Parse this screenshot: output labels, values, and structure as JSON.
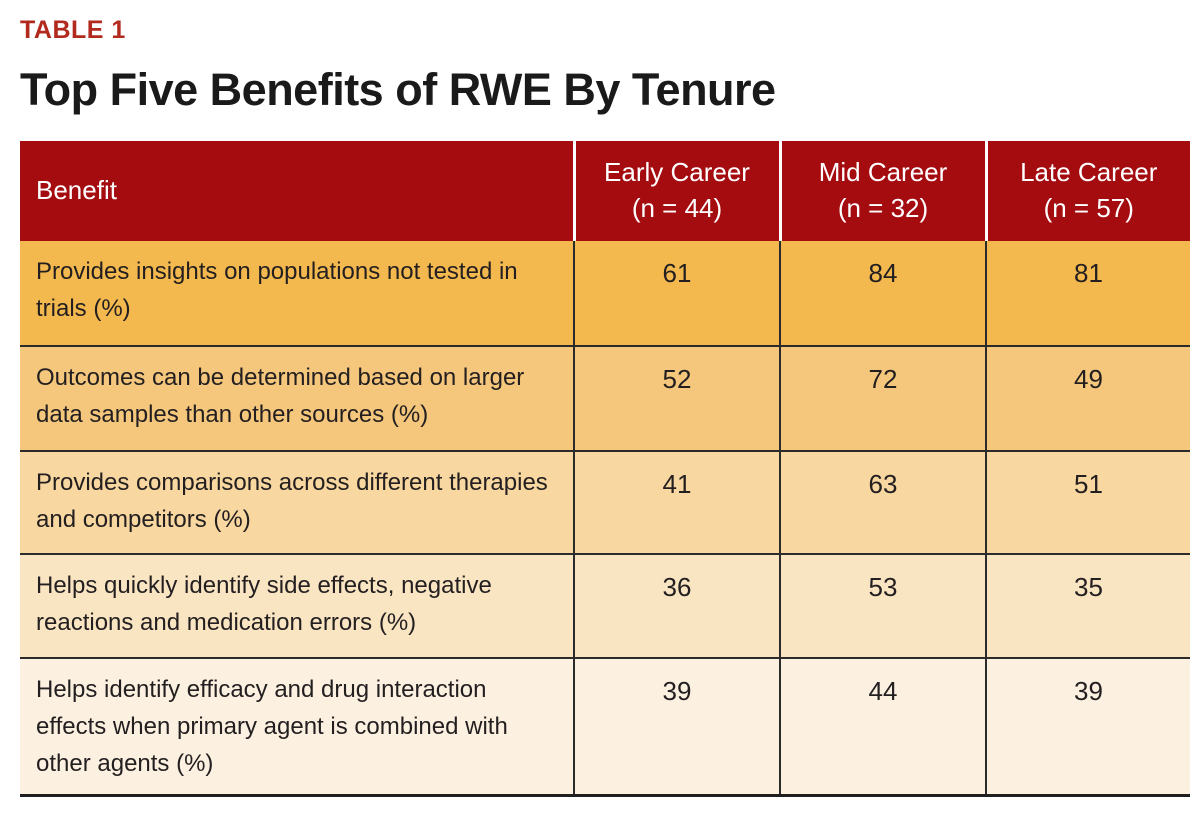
{
  "page": {
    "table_label": "TABLE 1",
    "title": "Top Five Benefits of RWE By Tenure"
  },
  "colors": {
    "label_red": "#b22a1e",
    "header_bg": "#a40c10",
    "header_text": "#ffffff",
    "body_text": "#231f20",
    "row_colors": [
      "#f3b94e",
      "#f5c77c",
      "#f8d7a0",
      "#fae5c3",
      "#fcf1e0"
    ],
    "cell_divider": "#2b2b2b",
    "bottom_border": "#1f1f1f"
  },
  "table": {
    "columns": [
      {
        "label": "Benefit",
        "n": ""
      },
      {
        "label": "Early Career",
        "n": "(n = 44)"
      },
      {
        "label": "Mid Career",
        "n": "(n = 32)"
      },
      {
        "label": "Late Career",
        "n": "(n = 57)"
      }
    ],
    "rows": [
      {
        "benefit": "Provides insights on populations not tested in trials (%)",
        "early": "61",
        "mid": "84",
        "late": "81"
      },
      {
        "benefit": "Outcomes can be determined based on larger data samples than other sources (%)",
        "early": "52",
        "mid": "72",
        "late": "49"
      },
      {
        "benefit": "Provides comparisons across different therapies and competitors (%)",
        "early": "41",
        "mid": "63",
        "late": "51"
      },
      {
        "benefit": "Helps quickly identify side effects, negative reactions and medication errors (%)",
        "early": "36",
        "mid": "53",
        "late": "35"
      },
      {
        "benefit": "Helps identify efficacy and drug interaction effects when primary agent is combined with other agents (%)",
        "early": "39",
        "mid": "44",
        "late": "39"
      }
    ]
  },
  "chart_data": {
    "type": "table",
    "title": "Top Five Benefits of RWE By Tenure",
    "table_label": "TABLE 1",
    "columns": [
      "Benefit",
      "Early Career (n = 44)",
      "Mid Career (n = 32)",
      "Late Career (n = 57)"
    ],
    "rows": [
      {
        "benefit": "Provides insights on populations not tested in trials (%)",
        "early_career": 61,
        "mid_career": 84,
        "late_career": 81
      },
      {
        "benefit": "Outcomes can be determined based on larger data samples than other sources (%)",
        "early_career": 52,
        "mid_career": 72,
        "late_career": 49
      },
      {
        "benefit": "Provides comparisons across different therapies and competitors (%)",
        "early_career": 41,
        "mid_career": 63,
        "late_career": 51
      },
      {
        "benefit": "Helps quickly identify side effects, negative reactions and medication errors (%)",
        "early_career": 36,
        "mid_career": 53,
        "late_career": 35
      },
      {
        "benefit": "Helps identify efficacy and drug interaction effects when primary agent is combined with other agents (%)",
        "early_career": 39,
        "mid_career": 44,
        "late_career": 39
      }
    ],
    "units": "percent of respondents",
    "legend_position": "none",
    "grid": false
  }
}
